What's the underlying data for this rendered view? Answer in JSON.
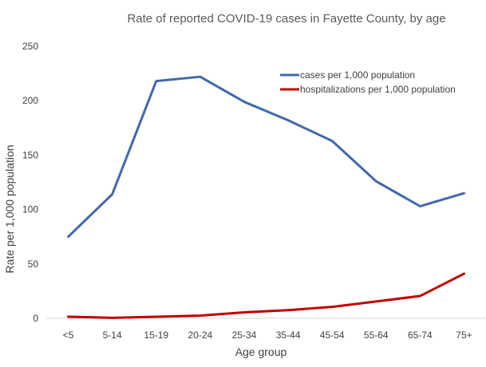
{
  "chart_data": {
    "type": "line",
    "title": "Rate of reported COVID-19 cases in Fayette County, by age",
    "xlabel": "Age group",
    "ylabel": "Rate per 1,000 population",
    "categories": [
      "<5",
      "5-14",
      "15-19",
      "20-24",
      "25-34",
      "35-44",
      "45-54",
      "55-64",
      "65-74",
      "75+"
    ],
    "ylim": [
      0,
      250
    ],
    "yticks": [
      0,
      50,
      100,
      150,
      200,
      250
    ],
    "grid": false,
    "legend_position": "top-right",
    "series": [
      {
        "name": "cases per 1,000 population",
        "color": "#4169aa",
        "values": [
          75,
          114,
          218,
          222,
          199,
          182,
          163,
          126,
          103,
          115
        ]
      },
      {
        "name": "hospitalizations per 1,000 population",
        "color": "#c00000",
        "values": [
          1.5,
          0.5,
          1.5,
          2.5,
          5.5,
          7.5,
          10.5,
          15.5,
          20.5,
          41
        ]
      }
    ]
  }
}
